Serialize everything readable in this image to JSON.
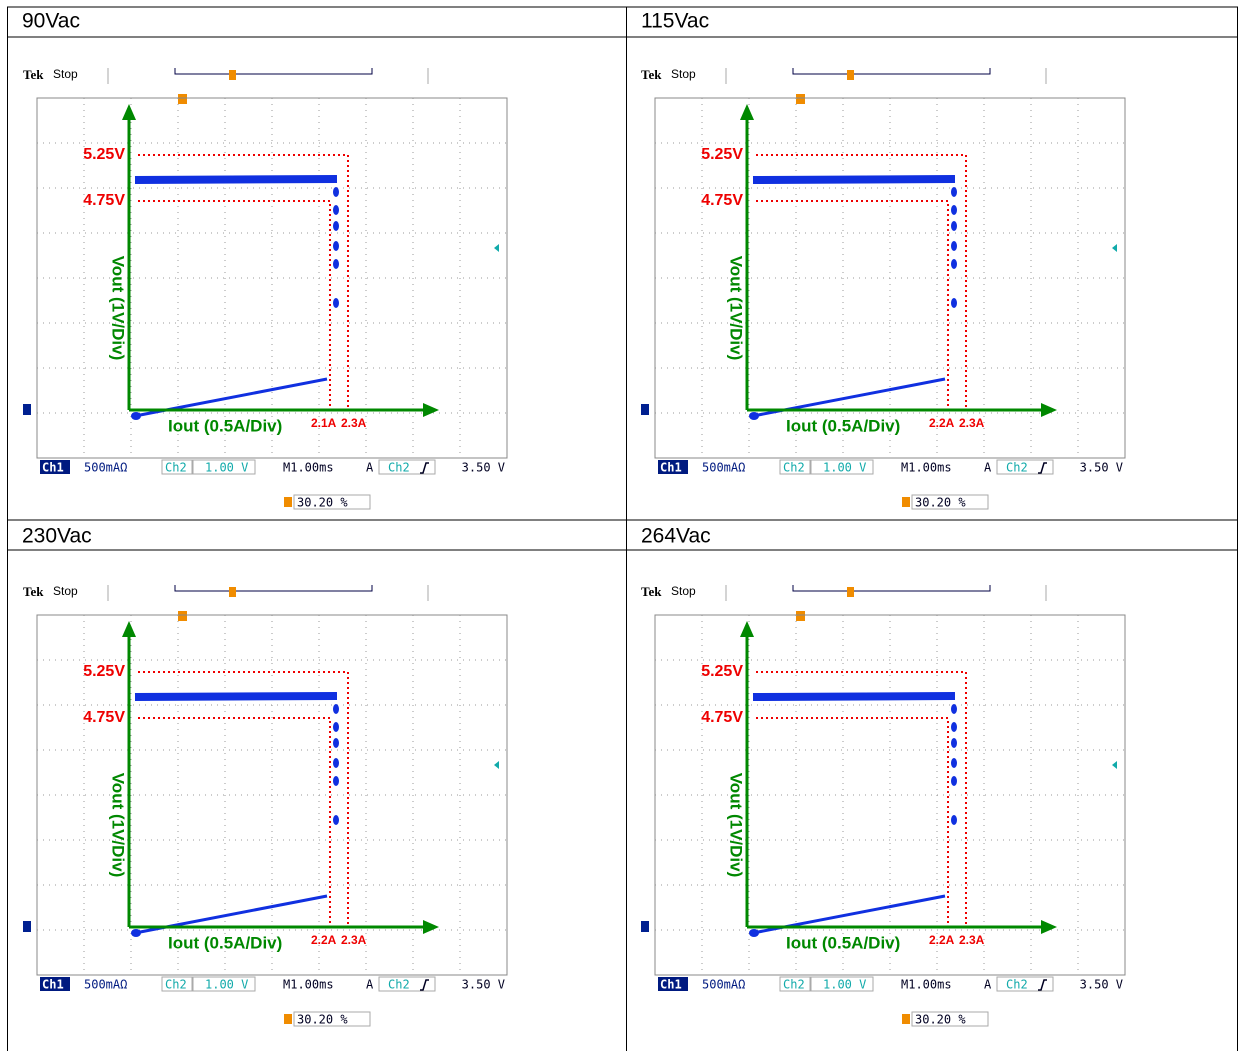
{
  "panels": [
    {
      "title": "90Vac",
      "tek": "Tek",
      "state": "Stop",
      "upper": "5.25V",
      "lower": "4.75V",
      "y_axis": "Vout (1V/Div)",
      "x_axis": "Iout (0.5A/Div)",
      "knee": "2.1A",
      "limit": "2.3A",
      "ch1": "Ch1",
      "ch1_scale": "500mAΩ",
      "ch2": "Ch2",
      "ch2_scale": "1.00 V",
      "timebase": "M1.00ms",
      "trigger": "A",
      "trigger_ch": "Ch2",
      "trigger_level": "3.50 V",
      "position": "30.20 %"
    },
    {
      "title": "115Vac",
      "tek": "Tek",
      "state": "Stop",
      "upper": "5.25V",
      "lower": "4.75V",
      "y_axis": "Vout (1V/Div)",
      "x_axis": "Iout (0.5A/Div)",
      "knee": "2.2A",
      "limit": "2.3A",
      "ch1": "Ch1",
      "ch1_scale": "500mAΩ",
      "ch2": "Ch2",
      "ch2_scale": "1.00 V",
      "timebase": "M1.00ms",
      "trigger": "A",
      "trigger_ch": "Ch2",
      "trigger_level": "3.50 V",
      "position": "30.20 %"
    },
    {
      "title": "230Vac",
      "tek": "Tek",
      "state": "Stop",
      "upper": "5.25V",
      "lower": "4.75V",
      "y_axis": "Vout (1V/Div)",
      "x_axis": "Iout (0.5A/Div)",
      "knee": "2.2A",
      "limit": "2.3A",
      "ch1": "Ch1",
      "ch1_scale": "500mAΩ",
      "ch2": "Ch2",
      "ch2_scale": "1.00 V",
      "timebase": "M1.00ms",
      "trigger": "A",
      "trigger_ch": "Ch2",
      "trigger_level": "3.50 V",
      "position": "30.20 %"
    },
    {
      "title": "264Vac",
      "tek": "Tek",
      "state": "Stop",
      "upper": "5.25V",
      "lower": "4.75V",
      "y_axis": "Vout (1V/Div)",
      "x_axis": "Iout (0.5A/Div)",
      "knee": "2.2A",
      "limit": "2.3A",
      "ch1": "Ch1",
      "ch1_scale": "500mAΩ",
      "ch2": "Ch2",
      "ch2_scale": "1.00 V",
      "timebase": "M1.00ms",
      "trigger": "A",
      "trigger_ch": "Ch2",
      "trigger_level": "3.50 V",
      "position": "30.20 %"
    }
  ]
}
